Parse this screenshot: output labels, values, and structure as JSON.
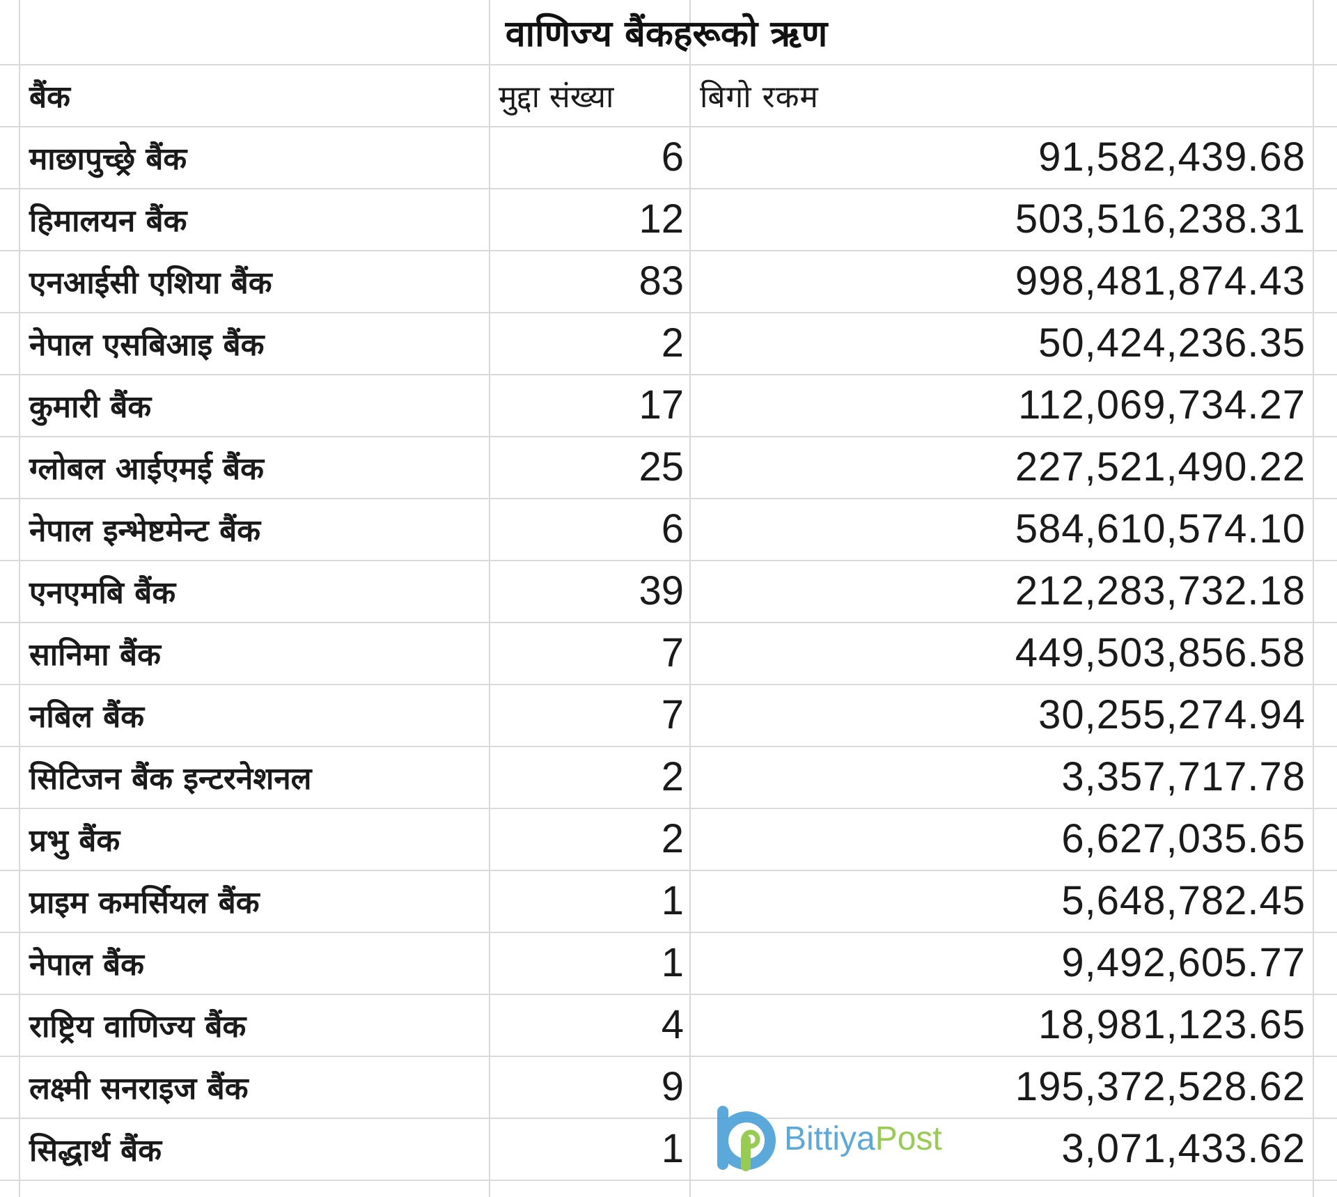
{
  "title": "वाणिज्य बैंकहरूको ऋण",
  "headers": {
    "bank": "बैंक",
    "cases": "मुद्दा संख्या",
    "amount": "बिगो रकम"
  },
  "rows": [
    {
      "bank": "माछापुच्छ्रे बैंक",
      "cases": "6",
      "amount": "91,582,439.68"
    },
    {
      "bank": "हिमालयन बैंक",
      "cases": "12",
      "amount": "503,516,238.31"
    },
    {
      "bank": "एनआईसी एशिया बैंक",
      "cases": "83",
      "amount": "998,481,874.43"
    },
    {
      "bank": "नेपाल एसबिआइ बैंक",
      "cases": "2",
      "amount": "50,424,236.35"
    },
    {
      "bank": "कुमारी बैंक",
      "cases": "17",
      "amount": "112,069,734.27"
    },
    {
      "bank": "ग्लोबल आईएमई बैंक",
      "cases": "25",
      "amount": "227,521,490.22"
    },
    {
      "bank": "नेपाल इन्भेष्टमेन्ट बैंक",
      "cases": "6",
      "amount": "584,610,574.10"
    },
    {
      "bank": "एनएमबि बैंक",
      "cases": "39",
      "amount": "212,283,732.18"
    },
    {
      "bank": "सानिमा बैंक",
      "cases": "7",
      "amount": "449,503,856.58"
    },
    {
      "bank": "नबिल बैंक",
      "cases": "7",
      "amount": "30,255,274.94"
    },
    {
      "bank": "सिटिजन बैंक इन्टरनेशनल",
      "cases": "2",
      "amount": "3,357,717.78"
    },
    {
      "bank": "प्रभु बैंक",
      "cases": "2",
      "amount": "6,627,035.65"
    },
    {
      "bank": "प्राइम कमर्सियल बैंक",
      "cases": "1",
      "amount": "5,648,782.45"
    },
    {
      "bank": "नेपाल बैंक",
      "cases": "1",
      "amount": "9,492,605.77"
    },
    {
      "bank": "राष्ट्रिय वाणिज्य बैंक",
      "cases": "4",
      "amount": "18,981,123.65"
    },
    {
      "bank": "लक्ष्मी सनराइज बैंक",
      "cases": "9",
      "amount": "195,372,528.62"
    },
    {
      "bank": "सिद्धार्थ बैंक",
      "cases": "1",
      "amount": "3,071,433.62"
    }
  ],
  "watermark": {
    "part1": "Bittiya",
    "part2": "Post"
  },
  "colors": {
    "grid": "#d9d9d9",
    "brand_blue": "#4a9fd8",
    "brand_green": "#8cc63f"
  }
}
